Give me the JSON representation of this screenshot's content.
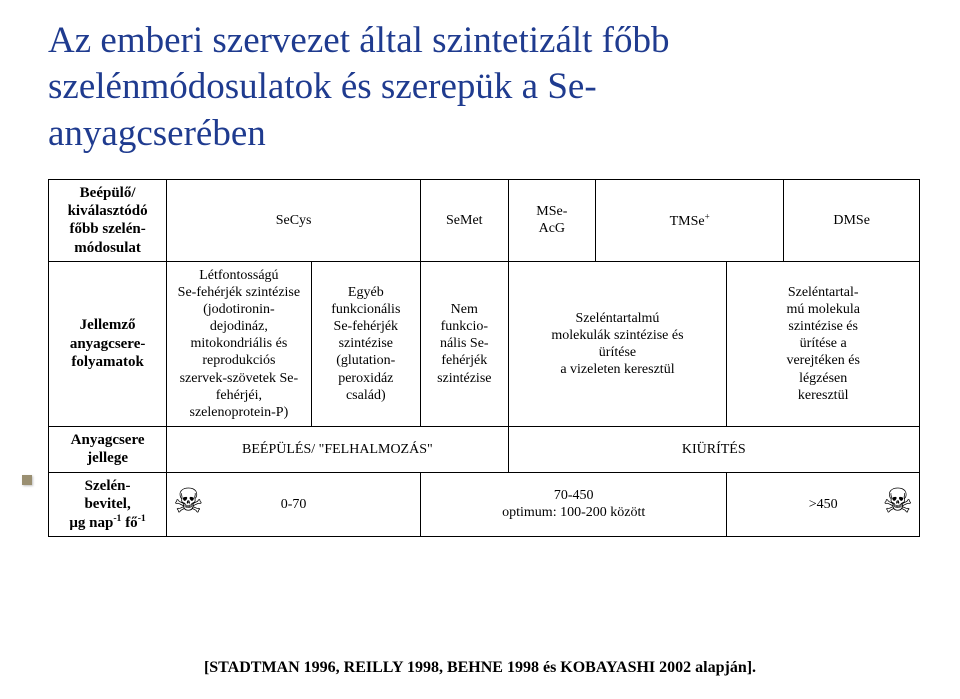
{
  "title_color": "#1f3b8f",
  "title_lines": [
    "Az emberi szervezet által szintetizált főbb",
    "szelénmódosulatok és szerepük a Se-",
    "anyagcserében"
  ],
  "row_headers": {
    "r1": "Beépülő/\nkiválasztódó\nfőbb szelén-\nmódosulat",
    "r2": "Jellemző\nanyagcsere-\nfolyamatok",
    "r3": "Anyagcsere\njellege",
    "r4_html": "Szelén-\nbevitel,\nμg nap<sup>-1</sup> fő<sup>-1</sup>"
  },
  "col_headers": {
    "c1": "SeCys",
    "c2": "SeMet",
    "c3": "MSe-\nAcG",
    "c4_html": "TMSe<sup>+</sup>",
    "c5": "DMSe"
  },
  "r2": {
    "c1a": "Létfontosságú\nSe-fehérjék szintézise\n(jodotironin-\ndejodináz,\nmitokondriális és\nreprodukciós\nszervek-szövetek Se-\nfehérjéi,\nszelenoprotein-P)",
    "c1b": "Egyéb\nfunkcionális\nSe-fehérjék\nszintézise\n(glutation-\nperoxidáz\ncsalád)",
    "c2": "Nem\nfunkcio-\nnális Se-\nfehérjék\nszintézise",
    "c34": "Szeléntartalmú\nmolekulák szintézise és\nürítése\na vizeleten keresztül",
    "c5": "Szeléntartal-\nmú molekula\nszintézise és\nürítése a\nverejtéken és\nlégzésen\nkeresztül"
  },
  "r3": {
    "left": "BEÉPÜLÉS/ \"FELHALMOZÁS\"",
    "right": "KIÜRÍTÉS"
  },
  "r4": {
    "skull": "☠",
    "c1": "0-70",
    "c2": "70-450\noptimum: 100-200 között",
    "c3": ">450"
  },
  "citation": "[STADTMAN 1996, REILLY 1998, BEHNE 1998 és KOBAYASHI 2002 alapján].",
  "colors": {
    "title": "#1f3b8f",
    "text": "#000000",
    "border": "#000000",
    "bg": "#ffffff",
    "bullet": "#9a8f71"
  }
}
